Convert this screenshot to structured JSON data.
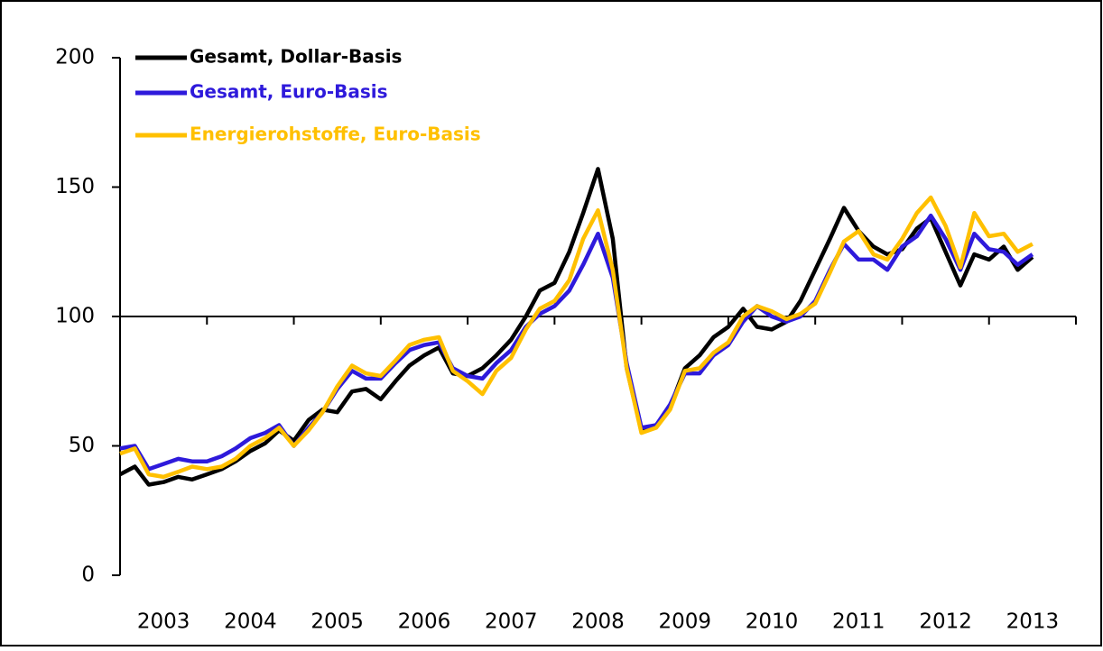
{
  "chart_data": {
    "type": "line",
    "x": [
      2003,
      2003.17,
      2003.33,
      2003.5,
      2003.67,
      2003.83,
      2004,
      2004.17,
      2004.33,
      2004.5,
      2004.67,
      2004.83,
      2005,
      2005.17,
      2005.33,
      2005.5,
      2005.67,
      2005.83,
      2006,
      2006.17,
      2006.33,
      2006.5,
      2006.67,
      2006.83,
      2007,
      2007.17,
      2007.33,
      2007.5,
      2007.67,
      2007.83,
      2008,
      2008.17,
      2008.33,
      2008.5,
      2008.67,
      2008.83,
      2009,
      2009.17,
      2009.33,
      2009.5,
      2009.67,
      2009.83,
      2010,
      2010.17,
      2010.33,
      2010.5,
      2010.67,
      2010.83,
      2011,
      2011.17,
      2011.33,
      2011.5,
      2011.67,
      2011.83,
      2012,
      2012.17,
      2012.33,
      2012.5,
      2012.67,
      2012.83,
      2013,
      2013.17,
      2013.33,
      2013.5
    ],
    "series": [
      {
        "name": "Gesamt, Dollar-Basis",
        "color": "#000000",
        "values": [
          39,
          42,
          35,
          36,
          38,
          37,
          39,
          41,
          44,
          48,
          51,
          56,
          52,
          60,
          64,
          63,
          71,
          72,
          68,
          75,
          81,
          85,
          88,
          78,
          77,
          80,
          85,
          91,
          100,
          110,
          113,
          125,
          140,
          157,
          130,
          80,
          56,
          58,
          65,
          80,
          85,
          92,
          96,
          103,
          96,
          95,
          98,
          106,
          118,
          130,
          142,
          133,
          127,
          124,
          126,
          134,
          138,
          125,
          112,
          124,
          122,
          127,
          118,
          123
        ]
      },
      {
        "name": "Gesamt, Euro-Basis",
        "color": "#2e1adb",
        "values": [
          49,
          50,
          41,
          43,
          45,
          44,
          44,
          46,
          49,
          53,
          55,
          58,
          50,
          57,
          63,
          72,
          79,
          76,
          76,
          82,
          87,
          89,
          90,
          80,
          77,
          76,
          82,
          87,
          96,
          101,
          104,
          110,
          120,
          132,
          115,
          82,
          57,
          58,
          66,
          78,
          78,
          85,
          89,
          98,
          104,
          100,
          98,
          100,
          106,
          118,
          128,
          122,
          122,
          118,
          127,
          131,
          139,
          130,
          118,
          132,
          126,
          125,
          120,
          124
        ]
      },
      {
        "name": "Energierohstoffe, Euro-Basis",
        "color": "#ffc000",
        "values": [
          47,
          49,
          39,
          38,
          40,
          42,
          41,
          42,
          45,
          50,
          53,
          57,
          50,
          56,
          63,
          73,
          81,
          78,
          77,
          83,
          89,
          91,
          92,
          79,
          75,
          70,
          79,
          84,
          95,
          103,
          106,
          114,
          130,
          141,
          118,
          80,
          55,
          57,
          64,
          79,
          80,
          86,
          90,
          100,
          104,
          102,
          99,
          101,
          105,
          117,
          129,
          133,
          124,
          122,
          130,
          140,
          146,
          135,
          119,
          140,
          131,
          132,
          125,
          128
        ]
      }
    ],
    "xlim": [
      2003,
      2014
    ],
    "xticks": [
      2003,
      2004,
      2005,
      2006,
      2007,
      2008,
      2009,
      2010,
      2011,
      2012,
      2013,
      2014
    ],
    "categories": [
      "2003",
      "2004",
      "2005",
      "2006",
      "2007",
      "2008",
      "2009",
      "2010",
      "2011",
      "2012",
      "2013"
    ],
    "ylim": [
      0,
      200
    ],
    "yticks": [
      0,
      50,
      100,
      150,
      200
    ],
    "xaxis_crosses": 100,
    "legend": "top-left"
  }
}
